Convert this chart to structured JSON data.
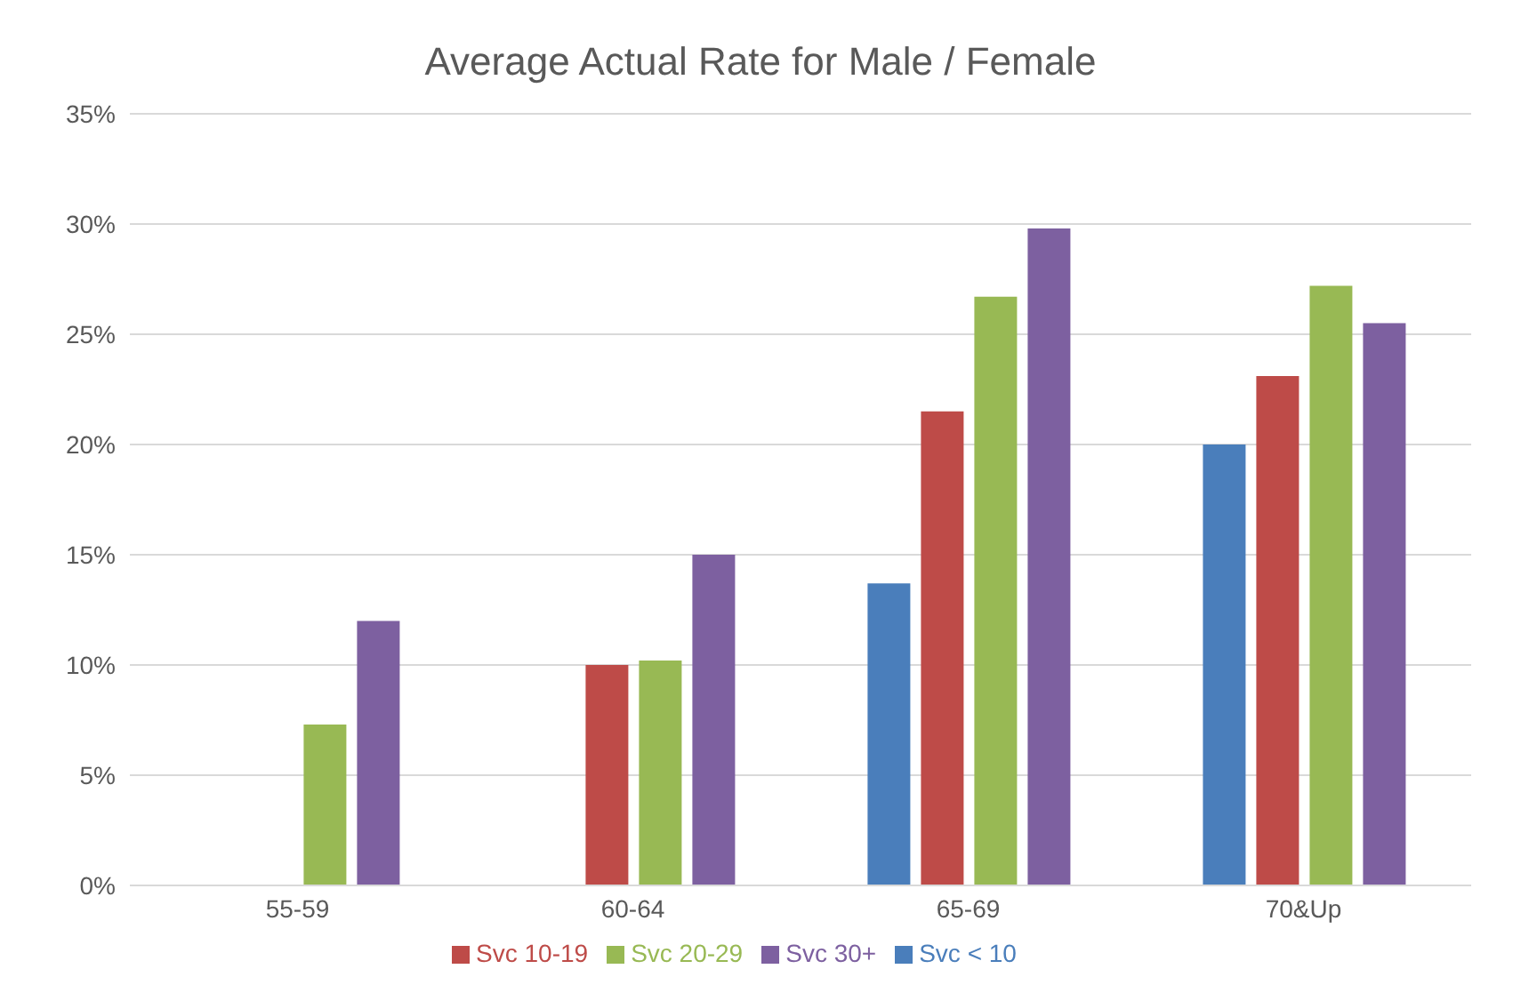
{
  "chart_data": {
    "type": "bar",
    "title": "Average Actual Rate for Male / Female",
    "categories": [
      "55-59",
      "60-64",
      "65-69",
      "70&Up"
    ],
    "series": [
      {
        "name": "Svc < 10",
        "color": "#4a7ebb",
        "values": [
          null,
          null,
          13.7,
          20.0
        ]
      },
      {
        "name": "Svc 10-19",
        "color": "#be4b48",
        "values": [
          null,
          10.0,
          21.5,
          23.1
        ]
      },
      {
        "name": "Svc 20-29",
        "color": "#98b954",
        "values": [
          7.3,
          10.2,
          26.7,
          27.2
        ]
      },
      {
        "name": "Svc 30+",
        "color": "#7d60a0",
        "values": [
          12.0,
          15.0,
          29.8,
          25.5
        ]
      }
    ],
    "ylim": [
      0,
      35
    ],
    "yticks": [
      {
        "value": 0,
        "label": "0%"
      },
      {
        "value": 5,
        "label": "5%"
      },
      {
        "value": 10,
        "label": "10%"
      },
      {
        "value": 15,
        "label": "15%"
      },
      {
        "value": 20,
        "label": "20%"
      },
      {
        "value": 25,
        "label": "25%"
      },
      {
        "value": 30,
        "label": "30%"
      },
      {
        "value": 35,
        "label": "35%"
      }
    ],
    "grid": "y",
    "legend": "bottom"
  }
}
